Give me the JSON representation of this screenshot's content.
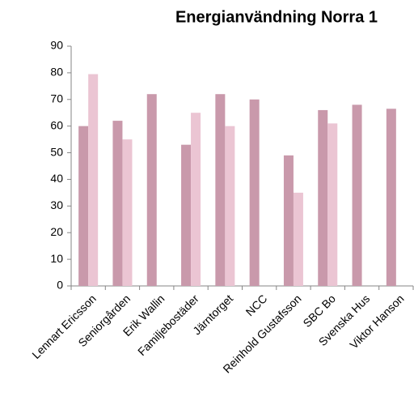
{
  "chart_data": {
    "type": "bar",
    "title": "Energianvändning Norra 1",
    "categories": [
      "Lennart Ericsson",
      "Seniorgården",
      "Erik Wallin",
      "Familjebostäder",
      "Järntorget",
      "NCC",
      "Reinhold Gustafsson",
      "SBC Bo",
      "Svenska Hus",
      "Viktor Hanson"
    ],
    "series": [
      {
        "color": "#c999ab",
        "values": [
          60,
          62,
          72,
          53,
          72,
          70,
          49,
          66,
          68,
          66.5
        ]
      },
      {
        "color": "#ebc5d3",
        "values": [
          79.5,
          55,
          null,
          65,
          60,
          null,
          35,
          61,
          null,
          null
        ]
      }
    ],
    "ylim": [
      0,
      90
    ],
    "yticks": [
      0,
      10,
      20,
      30,
      40,
      50,
      60,
      70,
      80,
      90
    ],
    "grid": false
  }
}
